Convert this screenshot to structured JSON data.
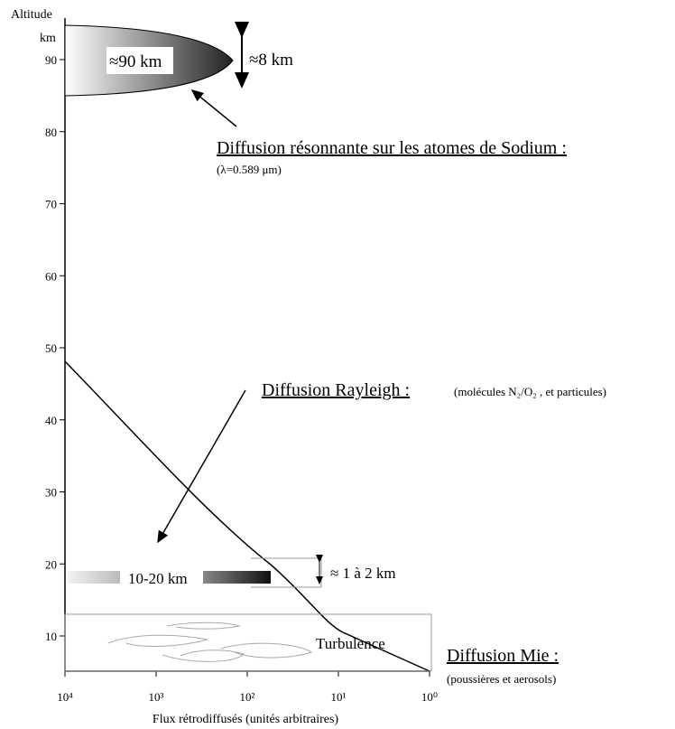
{
  "axis": {
    "title": "Altitude",
    "unit": "km",
    "yticks": [
      "10",
      "20",
      "30",
      "40",
      "50",
      "60",
      "70",
      "80",
      "90"
    ],
    "xticks": [
      "10⁴",
      "10³",
      "10²",
      "10¹",
      "10⁰"
    ],
    "xlabel": "Flux rétrodiffusés (unités arbitraires)"
  },
  "sodium": {
    "label": "≈90 km",
    "thickness": "≈8 km",
    "title": "Diffusion résonnante sur les atomes de Sodium :",
    "subtitle": "(λ=0.589 μm)"
  },
  "rayleigh": {
    "title": "Diffusion Rayleigh :",
    "subtitle": "(molécules N₂/O₂ , et particules)",
    "layer": "10-20 km",
    "thickness": "≈ 1 à 2 km"
  },
  "mie": {
    "turbulence": "Turbulence",
    "title": "Diffusion Mie :",
    "subtitle": "(poussières et aerosols)"
  }
}
